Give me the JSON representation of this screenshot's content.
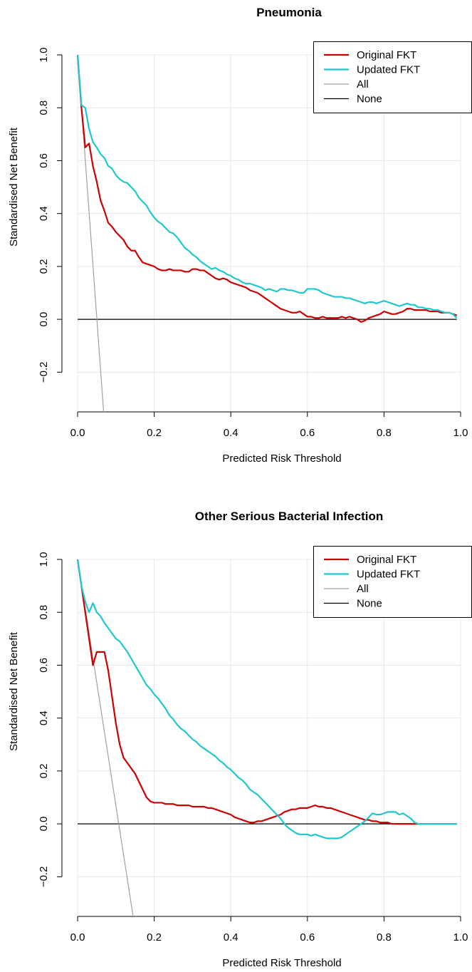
{
  "chart_data": [
    {
      "type": "line",
      "title": "Pneumonia",
      "xlabel": "Predicted Risk Threshold",
      "ylabel": "Standardised Net Benefit",
      "xlim": [
        0,
        1
      ],
      "ylim": [
        -0.35,
        1.0
      ],
      "x_ticks": [
        "0.0",
        "0.2",
        "0.4",
        "0.6",
        "0.8",
        "1.0"
      ],
      "y_ticks": [
        "−0.2",
        "0.0",
        "0.2",
        "0.4",
        "0.6",
        "0.8",
        "1.0"
      ],
      "grid": true,
      "legend_position": "top-right",
      "series": [
        {
          "name": "Original FKT",
          "color": "#cc0000",
          "x": [
            0,
            0.01,
            0.02,
            0.03,
            0.04,
            0.05,
            0.06,
            0.07,
            0.08,
            0.09,
            0.1,
            0.11,
            0.12,
            0.13,
            0.14,
            0.15,
            0.16,
            0.17,
            0.18,
            0.19,
            0.2,
            0.21,
            0.22,
            0.23,
            0.24,
            0.25,
            0.26,
            0.27,
            0.28,
            0.29,
            0.3,
            0.31,
            0.32,
            0.33,
            0.34,
            0.35,
            0.36,
            0.37,
            0.38,
            0.39,
            0.4,
            0.41,
            0.42,
            0.43,
            0.44,
            0.45,
            0.46,
            0.47,
            0.48,
            0.49,
            0.5,
            0.51,
            0.52,
            0.53,
            0.54,
            0.55,
            0.56,
            0.57,
            0.58,
            0.59,
            0.6,
            0.61,
            0.62,
            0.63,
            0.64,
            0.65,
            0.66,
            0.67,
            0.68,
            0.69,
            0.7,
            0.71,
            0.72,
            0.73,
            0.74,
            0.75,
            0.76,
            0.77,
            0.78,
            0.79,
            0.8,
            0.81,
            0.82,
            0.83,
            0.84,
            0.85,
            0.86,
            0.87,
            0.88,
            0.89,
            0.9,
            0.91,
            0.92,
            0.93,
            0.94,
            0.95,
            0.96,
            0.97,
            0.98,
            0.99
          ],
          "values": [
            1.0,
            0.8,
            0.65,
            0.665,
            0.58,
            0.52,
            0.45,
            0.41,
            0.365,
            0.35,
            0.33,
            0.315,
            0.3,
            0.275,
            0.26,
            0.26,
            0.235,
            0.215,
            0.21,
            0.205,
            0.2,
            0.19,
            0.185,
            0.185,
            0.19,
            0.185,
            0.185,
            0.185,
            0.18,
            0.18,
            0.19,
            0.19,
            0.185,
            0.185,
            0.175,
            0.165,
            0.155,
            0.15,
            0.155,
            0.15,
            0.14,
            0.135,
            0.13,
            0.125,
            0.12,
            0.11,
            0.105,
            0.1,
            0.09,
            0.08,
            0.07,
            0.06,
            0.05,
            0.04,
            0.035,
            0.03,
            0.025,
            0.025,
            0.03,
            0.02,
            0.01,
            0.01,
            0.005,
            0.005,
            0.01,
            0.005,
            0.005,
            0.005,
            0.005,
            0.01,
            0.005,
            0.01,
            0.005,
            0.0,
            -0.01,
            -0.005,
            0.005,
            0.01,
            0.015,
            0.02,
            0.03,
            0.025,
            0.02,
            0.02,
            0.025,
            0.03,
            0.04,
            0.04,
            0.035,
            0.035,
            0.035,
            0.035,
            0.03,
            0.03,
            0.03,
            0.025,
            0.025,
            0.025,
            0.02,
            0.015
          ]
        },
        {
          "name": "Updated FKT",
          "color": "#1fc8cc",
          "x": [
            0,
            0.01,
            0.02,
            0.03,
            0.04,
            0.05,
            0.06,
            0.07,
            0.08,
            0.09,
            0.1,
            0.11,
            0.12,
            0.13,
            0.14,
            0.15,
            0.16,
            0.17,
            0.18,
            0.19,
            0.2,
            0.21,
            0.22,
            0.23,
            0.24,
            0.25,
            0.26,
            0.27,
            0.28,
            0.29,
            0.3,
            0.31,
            0.32,
            0.33,
            0.34,
            0.35,
            0.36,
            0.37,
            0.38,
            0.39,
            0.4,
            0.41,
            0.42,
            0.43,
            0.44,
            0.45,
            0.46,
            0.47,
            0.48,
            0.49,
            0.5,
            0.51,
            0.52,
            0.53,
            0.54,
            0.55,
            0.56,
            0.57,
            0.58,
            0.59,
            0.6,
            0.61,
            0.62,
            0.63,
            0.64,
            0.65,
            0.66,
            0.67,
            0.68,
            0.69,
            0.7,
            0.71,
            0.72,
            0.73,
            0.74,
            0.75,
            0.76,
            0.77,
            0.78,
            0.79,
            0.8,
            0.81,
            0.82,
            0.83,
            0.84,
            0.85,
            0.86,
            0.87,
            0.88,
            0.89,
            0.9,
            0.91,
            0.92,
            0.93,
            0.94,
            0.95,
            0.96,
            0.97,
            0.98,
            0.99
          ],
          "values": [
            1.0,
            0.81,
            0.8,
            0.72,
            0.67,
            0.65,
            0.625,
            0.61,
            0.58,
            0.57,
            0.545,
            0.53,
            0.52,
            0.515,
            0.5,
            0.485,
            0.46,
            0.445,
            0.43,
            0.405,
            0.385,
            0.37,
            0.36,
            0.345,
            0.33,
            0.325,
            0.31,
            0.29,
            0.27,
            0.26,
            0.245,
            0.235,
            0.22,
            0.21,
            0.2,
            0.19,
            0.195,
            0.185,
            0.18,
            0.17,
            0.165,
            0.155,
            0.15,
            0.14,
            0.135,
            0.135,
            0.13,
            0.125,
            0.12,
            0.11,
            0.115,
            0.11,
            0.105,
            0.115,
            0.115,
            0.11,
            0.11,
            0.105,
            0.1,
            0.1,
            0.115,
            0.115,
            0.115,
            0.11,
            0.1,
            0.095,
            0.09,
            0.085,
            0.085,
            0.085,
            0.08,
            0.08,
            0.075,
            0.07,
            0.065,
            0.06,
            0.065,
            0.065,
            0.06,
            0.065,
            0.07,
            0.065,
            0.06,
            0.055,
            0.05,
            0.055,
            0.06,
            0.055,
            0.055,
            0.045,
            0.045,
            0.04,
            0.04,
            0.035,
            0.035,
            0.03,
            0.025,
            0.025,
            0.02,
            0.005
          ]
        },
        {
          "name": "All",
          "color": "#a0a0a0",
          "x": [
            0,
            0.068
          ],
          "values": [
            1.0,
            -0.35
          ]
        },
        {
          "name": "None",
          "color": "#000000",
          "x": [
            0,
            0.99
          ],
          "values": [
            0.0,
            0.0
          ]
        }
      ]
    },
    {
      "type": "line",
      "title": "Other Serious Bacterial Infection",
      "xlabel": "Predicted Risk Threshold",
      "ylabel": "Standardised Net Benefit",
      "xlim": [
        0,
        1
      ],
      "ylim": [
        -0.35,
        1.0
      ],
      "x_ticks": [
        "0.0",
        "0.2",
        "0.4",
        "0.6",
        "0.8",
        "1.0"
      ],
      "y_ticks": [
        "−0.2",
        "0.0",
        "0.2",
        "0.4",
        "0.6",
        "0.8",
        "1.0"
      ],
      "grid": true,
      "legend_position": "top-right",
      "series": [
        {
          "name": "Original FKT",
          "color": "#cc0000",
          "x": [
            0,
            0.01,
            0.02,
            0.03,
            0.04,
            0.05,
            0.06,
            0.07,
            0.08,
            0.09,
            0.1,
            0.11,
            0.12,
            0.13,
            0.14,
            0.15,
            0.16,
            0.17,
            0.18,
            0.19,
            0.2,
            0.21,
            0.22,
            0.23,
            0.24,
            0.25,
            0.26,
            0.27,
            0.28,
            0.29,
            0.3,
            0.31,
            0.32,
            0.33,
            0.34,
            0.35,
            0.36,
            0.37,
            0.38,
            0.39,
            0.4,
            0.41,
            0.42,
            0.43,
            0.44,
            0.45,
            0.46,
            0.47,
            0.48,
            0.49,
            0.5,
            0.51,
            0.52,
            0.53,
            0.54,
            0.55,
            0.56,
            0.57,
            0.58,
            0.59,
            0.6,
            0.61,
            0.62,
            0.63,
            0.64,
            0.65,
            0.66,
            0.67,
            0.68,
            0.69,
            0.7,
            0.71,
            0.72,
            0.73,
            0.74,
            0.75,
            0.76,
            0.77,
            0.78,
            0.79,
            0.8,
            0.81,
            0.82,
            0.83,
            0.84,
            0.85,
            0.86,
            0.87,
            0.88,
            0.89,
            0.9,
            0.91,
            0.92,
            0.93,
            0.94,
            0.95,
            0.96,
            0.97,
            0.98,
            0.99
          ],
          "values": [
            1.0,
            0.9,
            0.8,
            0.7,
            0.6,
            0.65,
            0.65,
            0.65,
            0.58,
            0.48,
            0.38,
            0.3,
            0.25,
            0.23,
            0.21,
            0.19,
            0.16,
            0.13,
            0.1,
            0.085,
            0.08,
            0.08,
            0.08,
            0.075,
            0.075,
            0.075,
            0.07,
            0.07,
            0.07,
            0.07,
            0.065,
            0.065,
            0.065,
            0.065,
            0.06,
            0.06,
            0.055,
            0.05,
            0.045,
            0.04,
            0.035,
            0.025,
            0.02,
            0.015,
            0.01,
            0.005,
            0.005,
            0.01,
            0.01,
            0.015,
            0.02,
            0.025,
            0.03,
            0.035,
            0.045,
            0.05,
            0.055,
            0.055,
            0.06,
            0.06,
            0.06,
            0.065,
            0.07,
            0.065,
            0.065,
            0.06,
            0.06,
            0.055,
            0.05,
            0.045,
            0.04,
            0.035,
            0.03,
            0.025,
            0.02,
            0.015,
            0.015,
            0.01,
            0.01,
            0.005,
            0.005,
            0.005,
            0.0,
            0.0,
            0.0,
            0.0,
            0.0,
            0.0,
            0.0,
            0.0,
            0.0,
            0.0,
            0.0,
            0.0,
            0.0,
            0.0,
            0.0,
            0.0,
            0.0,
            0.0
          ]
        },
        {
          "name": "Updated FKT",
          "color": "#1fc8cc",
          "x": [
            0,
            0.01,
            0.02,
            0.03,
            0.04,
            0.05,
            0.06,
            0.07,
            0.08,
            0.09,
            0.1,
            0.11,
            0.12,
            0.13,
            0.14,
            0.15,
            0.16,
            0.17,
            0.18,
            0.19,
            0.2,
            0.21,
            0.22,
            0.23,
            0.24,
            0.25,
            0.26,
            0.27,
            0.28,
            0.29,
            0.3,
            0.31,
            0.32,
            0.33,
            0.34,
            0.35,
            0.36,
            0.37,
            0.38,
            0.39,
            0.4,
            0.41,
            0.42,
            0.43,
            0.44,
            0.45,
            0.46,
            0.47,
            0.48,
            0.49,
            0.5,
            0.51,
            0.52,
            0.53,
            0.54,
            0.55,
            0.56,
            0.57,
            0.58,
            0.59,
            0.6,
            0.61,
            0.62,
            0.63,
            0.64,
            0.65,
            0.66,
            0.67,
            0.68,
            0.69,
            0.7,
            0.71,
            0.72,
            0.73,
            0.74,
            0.75,
            0.76,
            0.77,
            0.78,
            0.79,
            0.8,
            0.81,
            0.82,
            0.83,
            0.84,
            0.85,
            0.86,
            0.87,
            0.88,
            0.89,
            0.9,
            0.91,
            0.92,
            0.93,
            0.94,
            0.95,
            0.96,
            0.97,
            0.98,
            0.99
          ],
          "values": [
            1.0,
            0.9,
            0.84,
            0.8,
            0.835,
            0.8,
            0.785,
            0.76,
            0.74,
            0.72,
            0.7,
            0.69,
            0.67,
            0.65,
            0.625,
            0.6,
            0.575,
            0.55,
            0.525,
            0.51,
            0.49,
            0.475,
            0.455,
            0.435,
            0.41,
            0.395,
            0.375,
            0.36,
            0.35,
            0.335,
            0.32,
            0.31,
            0.295,
            0.285,
            0.275,
            0.265,
            0.255,
            0.24,
            0.23,
            0.215,
            0.205,
            0.19,
            0.175,
            0.165,
            0.15,
            0.13,
            0.12,
            0.11,
            0.095,
            0.08,
            0.065,
            0.05,
            0.035,
            0.02,
            0.0,
            -0.015,
            -0.025,
            -0.035,
            -0.04,
            -0.04,
            -0.04,
            -0.045,
            -0.04,
            -0.045,
            -0.05,
            -0.055,
            -0.055,
            -0.055,
            -0.055,
            -0.05,
            -0.04,
            -0.03,
            -0.02,
            -0.01,
            0.0,
            0.01,
            0.025,
            0.04,
            0.035,
            0.035,
            0.04,
            0.045,
            0.045,
            0.045,
            0.035,
            0.04,
            0.03,
            0.02,
            0.005,
            0.0,
            0.0,
            0.0,
            0.0,
            0.0,
            0.0,
            0.0,
            0.0,
            0.0,
            0.0,
            0.0
          ]
        },
        {
          "name": "All",
          "color": "#a0a0a0",
          "x": [
            0,
            0.145
          ],
          "values": [
            1.0,
            -0.35
          ]
        },
        {
          "name": "None",
          "color": "#000000",
          "x": [
            0,
            0.99
          ],
          "values": [
            0.0,
            0.0
          ]
        }
      ]
    }
  ]
}
